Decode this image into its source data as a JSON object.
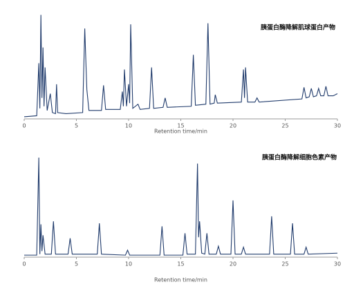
{
  "chart_data": [
    {
      "type": "line",
      "title": "胰蛋白酶降解肌球蛋白产物",
      "x_label": "Retention time/min",
      "color": "#1f3a6b",
      "xlim": [
        0,
        30
      ],
      "xticks": [
        0,
        5,
        10,
        15,
        20,
        25,
        30
      ],
      "ylim": [
        0,
        100
      ],
      "x": [
        0,
        1.2,
        1.4,
        1.5,
        1.6,
        1.7,
        1.8,
        1.9,
        2.0,
        2.2,
        2.5,
        2.7,
        3.0,
        3.1,
        3.2,
        4,
        5.6,
        5.8,
        6.0,
        6.2,
        7.4,
        7.6,
        7.8,
        9.2,
        9.4,
        9.5,
        9.6,
        9.8,
        10.0,
        10.1,
        10.2,
        10.4,
        10.9,
        11.1,
        12.0,
        12.2,
        12.4,
        13.3,
        13.5,
        13.7,
        16.0,
        16.2,
        16.4,
        17.4,
        17.6,
        17.8,
        18.2,
        18.3,
        18.5,
        20.8,
        21.0,
        21.1,
        21.2,
        21.4,
        22.1,
        22.3,
        22.5,
        26.6,
        26.8,
        27.0,
        27.3,
        27.5,
        27.7,
        28.0,
        28.2,
        28.4,
        28.7,
        28.9,
        29.1,
        29.6,
        30
      ],
      "values": [
        2,
        3,
        53,
        10,
        99,
        20,
        68,
        12,
        49,
        8,
        24,
        6,
        5,
        33,
        6,
        5,
        6,
        86,
        28,
        8,
        8,
        32,
        9,
        9,
        26,
        12,
        47,
        12,
        33,
        15,
        90,
        10,
        14,
        9,
        10,
        49,
        10,
        11,
        20,
        11,
        12,
        61,
        13,
        14,
        91,
        14,
        15,
        23,
        15,
        16,
        47,
        20,
        49,
        16,
        16,
        20,
        16,
        19,
        30,
        20,
        21,
        29,
        21,
        22,
        29,
        22,
        22,
        31,
        22,
        22,
        24
      ]
    },
    {
      "type": "line",
      "title": "胰蛋白酶降解细胞色素产物",
      "x_label": "Retention time/min",
      "color": "#1f3a6b",
      "xlim": [
        0,
        30
      ],
      "xticks": [
        0,
        5,
        10,
        15,
        20,
        25,
        30
      ],
      "ylim": [
        0,
        100
      ],
      "x": [
        0,
        1.2,
        1.4,
        1.5,
        1.6,
        1.7,
        1.8,
        2.0,
        2.6,
        2.8,
        3.0,
        4.2,
        4.4,
        4.6,
        7.0,
        7.2,
        7.4,
        9.7,
        9.9,
        10.1,
        13.0,
        13.2,
        13.4,
        15.2,
        15.4,
        15.6,
        16.4,
        16.6,
        16.7,
        16.8,
        17.0,
        17.3,
        17.5,
        17.7,
        18.4,
        18.6,
        18.8,
        19.8,
        20.0,
        20.2,
        20.8,
        21.0,
        21.2,
        23.5,
        23.7,
        23.9,
        25.5,
        25.7,
        25.9,
        26.8,
        27.0,
        27.2,
        30
      ],
      "values": [
        2,
        2,
        100,
        3,
        33,
        6,
        22,
        3,
        3,
        36,
        3,
        3,
        19,
        3,
        3,
        34,
        3,
        2,
        7,
        2,
        2,
        31,
        2,
        2,
        24,
        3,
        3,
        94,
        20,
        36,
        4,
        3,
        24,
        3,
        3,
        11,
        3,
        3,
        57,
        3,
        3,
        10,
        3,
        3,
        41,
        3,
        3,
        34,
        3,
        3,
        10,
        3,
        4
      ]
    }
  ]
}
